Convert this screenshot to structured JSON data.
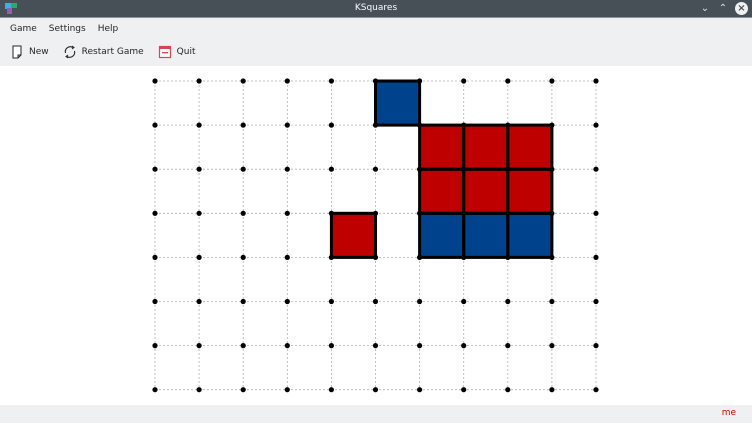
{
  "window": {
    "title": "KSquares"
  },
  "menubar": {
    "items": [
      {
        "label": "Game"
      },
      {
        "label": "Settings"
      },
      {
        "label": "Help"
      }
    ]
  },
  "toolbar": {
    "new_label": "New",
    "restart_label": "Restart Game",
    "quit_label": "Quit"
  },
  "board": {
    "columns": 10,
    "rows": 7,
    "colors": {
      "blue": "#00428c",
      "red": "#bf0000",
      "dot": "#000000",
      "grid": "#b0b0b0"
    },
    "boxes": [
      {
        "col": 5,
        "row": 0,
        "owner": "blue"
      },
      {
        "col": 6,
        "row": 1,
        "owner": "red"
      },
      {
        "col": 7,
        "row": 1,
        "owner": "red"
      },
      {
        "col": 8,
        "row": 1,
        "owner": "red"
      },
      {
        "col": 6,
        "row": 2,
        "owner": "red"
      },
      {
        "col": 7,
        "row": 2,
        "owner": "red"
      },
      {
        "col": 8,
        "row": 2,
        "owner": "red"
      },
      {
        "col": 4,
        "row": 3,
        "owner": "red"
      },
      {
        "col": 6,
        "row": 3,
        "owner": "blue"
      },
      {
        "col": 7,
        "row": 3,
        "owner": "blue"
      },
      {
        "col": 8,
        "row": 3,
        "owner": "blue"
      }
    ]
  },
  "status": {
    "current_player": "me",
    "player_color": "#d40000"
  }
}
